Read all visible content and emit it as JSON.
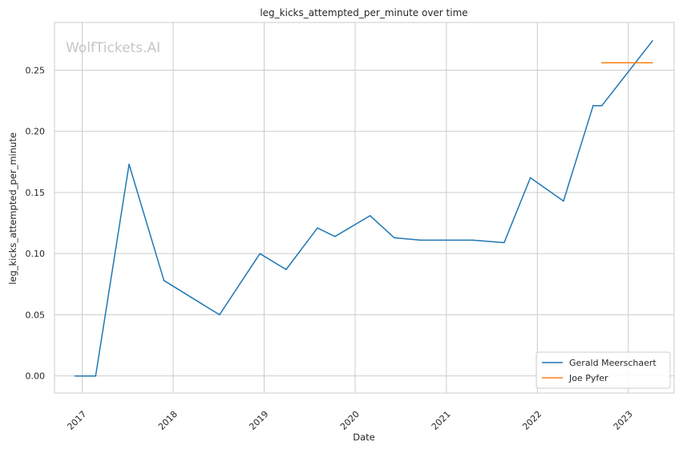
{
  "chart_data": {
    "type": "line",
    "title": "leg_kicks_attempted_per_minute over time",
    "xlabel": "Date",
    "ylabel": "leg_kicks_attempted_per_minute",
    "watermark": "WolfTickets.AI",
    "xlim": [
      "2016-09-12",
      "2023-07-04"
    ],
    "ylim": [
      -0.014,
      0.289
    ],
    "x_ticks": [
      "2017",
      "2018",
      "2019",
      "2020",
      "2021",
      "2022",
      "2023"
    ],
    "y_ticks": [
      "0.00",
      "0.05",
      "0.10",
      "0.15",
      "0.20",
      "0.25"
    ],
    "grid": true,
    "legend_position": "lower-right",
    "series": [
      {
        "name": "Gerald Meerschaert",
        "color": "#1f77b4",
        "points": [
          {
            "x": "2016-12-03",
            "y": 0.0
          },
          {
            "x": "2017-02-24",
            "y": 0.0
          },
          {
            "x": "2017-07-08",
            "y": 0.173
          },
          {
            "x": "2017-11-25",
            "y": 0.078
          },
          {
            "x": "2018-07-06",
            "y": 0.05
          },
          {
            "x": "2018-12-15",
            "y": 0.1
          },
          {
            "x": "2019-03-30",
            "y": 0.087
          },
          {
            "x": "2019-08-03",
            "y": 0.121
          },
          {
            "x": "2019-10-12",
            "y": 0.114
          },
          {
            "x": "2020-03-01",
            "y": 0.131
          },
          {
            "x": "2020-06-06",
            "y": 0.113
          },
          {
            "x": "2020-09-19",
            "y": 0.111
          },
          {
            "x": "2021-04-17",
            "y": 0.111
          },
          {
            "x": "2021-08-21",
            "y": 0.109
          },
          {
            "x": "2021-12-04",
            "y": 0.162
          },
          {
            "x": "2022-04-16",
            "y": 0.143
          },
          {
            "x": "2022-08-13",
            "y": 0.221
          },
          {
            "x": "2022-09-17",
            "y": 0.221
          },
          {
            "x": "2023-04-08",
            "y": 0.274
          }
        ]
      },
      {
        "name": "Joe Pyfer",
        "color": "#ff7f0e",
        "points": [
          {
            "x": "2022-09-17",
            "y": 0.256
          },
          {
            "x": "2023-04-08",
            "y": 0.256
          }
        ]
      }
    ]
  }
}
